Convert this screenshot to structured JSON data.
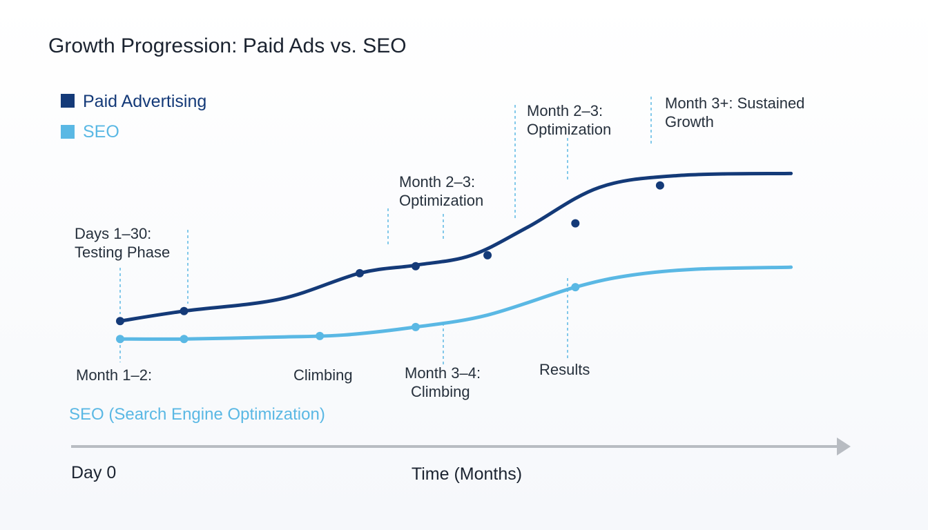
{
  "chart_data": {
    "type": "line",
    "title": "Growth Progression: Paid Ads vs. SEO",
    "xlabel": "Time (Months)",
    "x_start_label": "Day 0",
    "series_caption": "SEO (Search Engine Optimization)",
    "xlim": [
      0,
      4.5
    ],
    "ylim": [
      0,
      10
    ],
    "grid": false,
    "legend_position": "top-left",
    "colors": {
      "paid": "#143a78",
      "seo": "#5ab8e4",
      "axis": "#b8bcc2",
      "guide": "#5ab8e4"
    },
    "series": [
      {
        "name": "Paid Advertising",
        "x": [
          0,
          0.4,
          1.0,
          1.5,
          1.85,
          2.2,
          2.55,
          3.0,
          3.5,
          4.2
        ],
        "y": [
          1.1,
          1.6,
          2.2,
          3.5,
          3.9,
          4.4,
          5.8,
          7.8,
          8.4,
          8.5
        ],
        "markers_x": [
          0,
          0.4,
          1.5,
          1.85,
          2.3,
          2.85,
          3.38
        ],
        "markers_y": [
          1.1,
          1.6,
          3.5,
          3.85,
          4.4,
          6.0,
          7.9
        ]
      },
      {
        "name": "SEO",
        "x": [
          0,
          0.4,
          1.0,
          1.4,
          1.85,
          2.3,
          2.85,
          3.2,
          3.6,
          4.2
        ],
        "y": [
          0.2,
          0.2,
          0.3,
          0.4,
          0.8,
          1.4,
          2.8,
          3.4,
          3.7,
          3.8
        ],
        "markers_x": [
          0,
          0.4,
          1.25,
          1.85,
          2.85
        ],
        "markers_y": [
          0.2,
          0.2,
          0.35,
          0.8,
          2.8
        ]
      }
    ],
    "annotations": [
      {
        "text": [
          "Days 1–30:",
          "Testing Phase"
        ],
        "series": "Paid Advertising"
      },
      {
        "text": [
          "Month 2–3:",
          "Optimization"
        ],
        "series": "Paid Advertising"
      },
      {
        "text": [
          "Month 2–3:",
          "Optimization"
        ],
        "series": "Paid Advertising"
      },
      {
        "text": [
          "Month 3+: Sustained",
          "Growth"
        ],
        "series": "Paid Advertising"
      },
      {
        "text": [
          "Month 1–2:"
        ],
        "series": "SEO"
      },
      {
        "text": [
          "Climbing"
        ],
        "series": "SEO"
      },
      {
        "text": [
          "Month 3–4:",
          "Climbing"
        ],
        "series": "SEO"
      },
      {
        "text": [
          "Results"
        ],
        "series": "SEO"
      }
    ]
  }
}
